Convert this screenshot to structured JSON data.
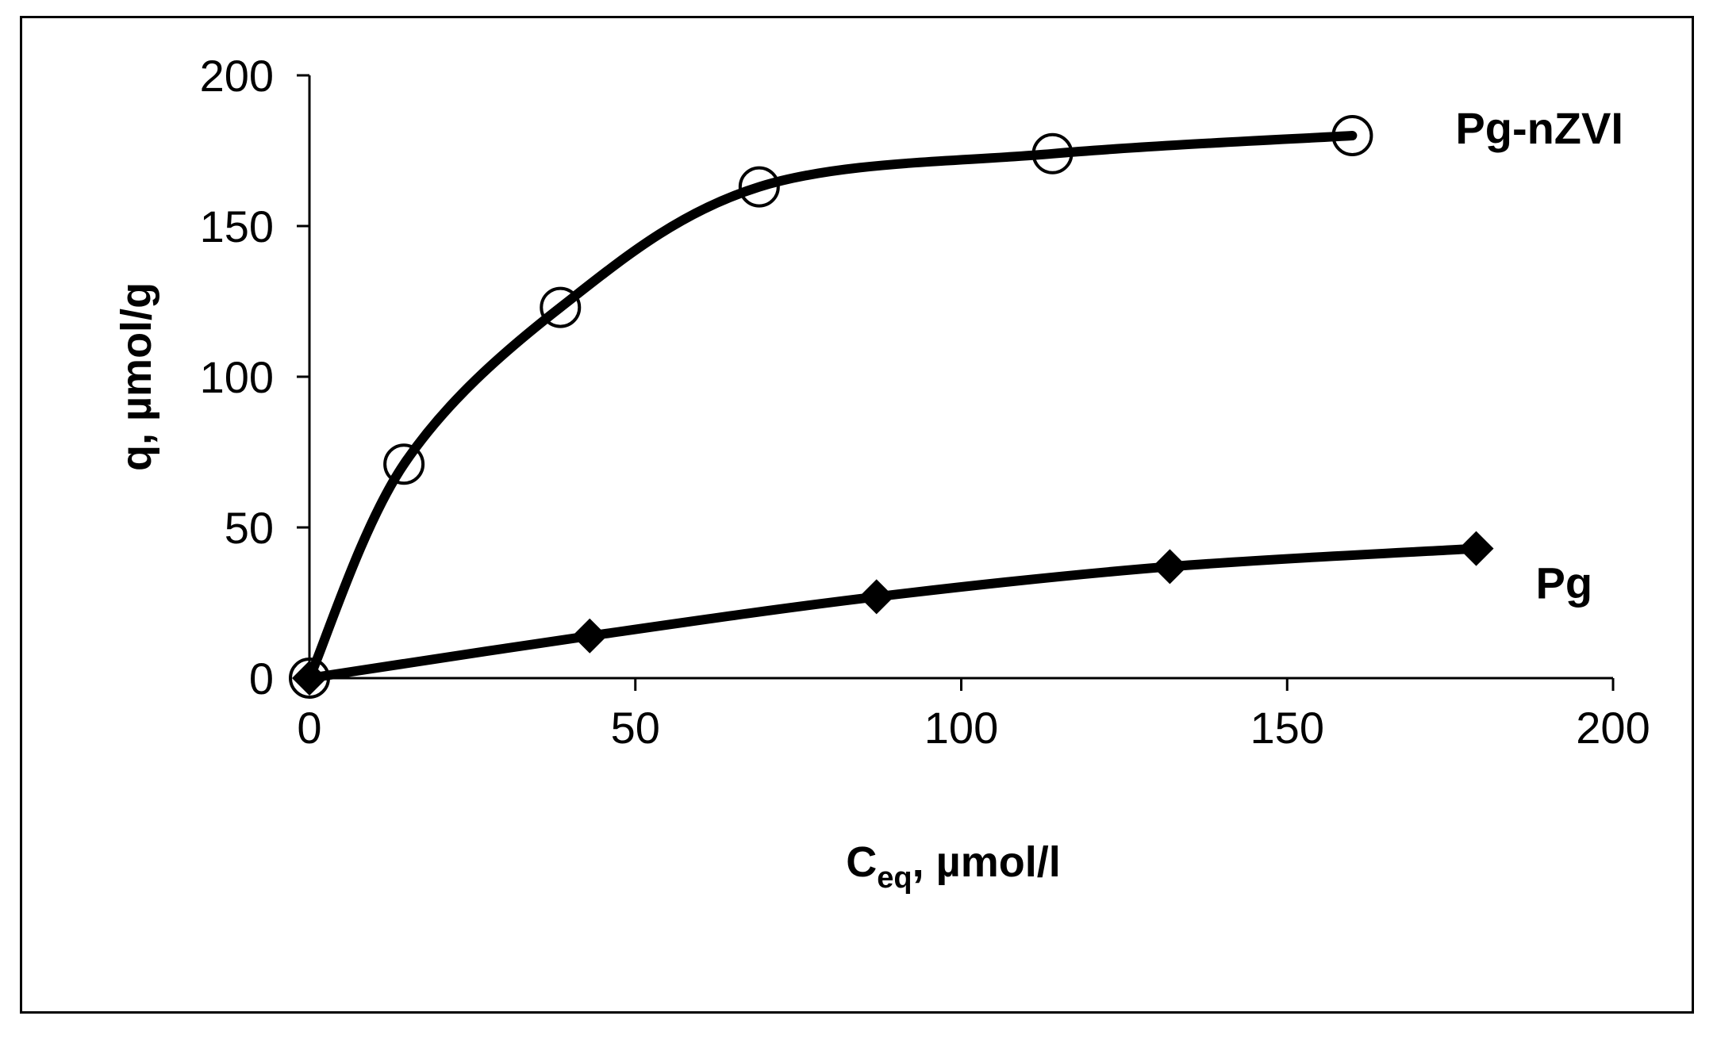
{
  "chart_data": {
    "type": "line",
    "title": "",
    "xlabel": {
      "main": "C",
      "sub": "eq",
      "rest": ", µmol/l"
    },
    "ylabel": "q, µmol/g",
    "xlim": [
      0,
      200
    ],
    "ylim": [
      0,
      200
    ],
    "xticks": [
      "0",
      "50",
      "100",
      "150",
      "200"
    ],
    "yticks": [
      "0",
      "50",
      "100",
      "150",
      "200"
    ],
    "grid": false,
    "legend": "none",
    "series": [
      {
        "name": "Pg-nZVI",
        "marker": "open-circle",
        "x": [
          0,
          14.5,
          38.5,
          69,
          114,
          160
        ],
        "y": [
          0,
          71,
          123,
          163,
          174,
          180
        ]
      },
      {
        "name": "Pg",
        "marker": "filled-diamond",
        "x": [
          0,
          43,
          87,
          132,
          179
        ],
        "y": [
          0,
          14,
          27,
          37,
          43
        ]
      }
    ],
    "colors": {
      "line": "#000000",
      "background": "#ffffff"
    }
  }
}
